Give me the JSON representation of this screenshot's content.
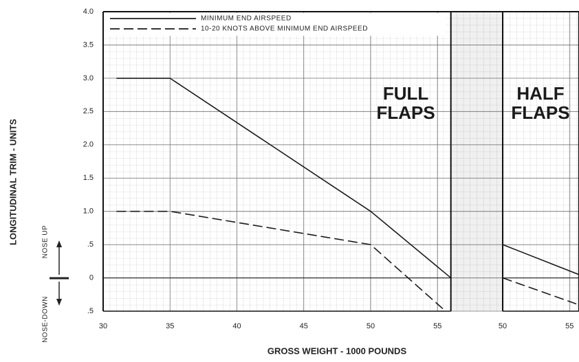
{
  "chart_data": [
    {
      "type": "line",
      "xlabel": "GROSS WEIGHT - 1000 POUNDS",
      "ylabel": "LONGITUDINAL TRIM - UNITS",
      "side_labels": {
        "up": "NOSE UP",
        "down": "NOSE-DOWN"
      },
      "annotation": [
        "FULL",
        "FLAPS"
      ],
      "xlim": [
        30,
        56
      ],
      "xticks": [
        30,
        35,
        40,
        45,
        50,
        55
      ],
      "ylim": [
        -0.5,
        4.0
      ],
      "yticks": [
        {
          "value": 4.0,
          "label": "4.0"
        },
        {
          "value": 3.5,
          "label": "3.5"
        },
        {
          "value": 3.0,
          "label": "3.0"
        },
        {
          "value": 2.5,
          "label": "2.5"
        },
        {
          "value": 2.0,
          "label": "2.0"
        },
        {
          "value": 1.5,
          "label": "1.5"
        },
        {
          "value": 1.0,
          "label": "1.0"
        },
        {
          "value": 0.5,
          "label": ".5"
        },
        0,
        {
          "value": -0.5,
          "label": ".5"
        }
      ],
      "series": [
        {
          "name": "MINIMUM END AIRSPEED",
          "color": "#1a1a1a",
          "style": "solid",
          "x": [
            31,
            35,
            50,
            56
          ],
          "values": [
            3.0,
            3.0,
            1.0,
            0
          ]
        },
        {
          "name": "10-20 KNOTS ABOVE MINIMUM END AIRSPEED",
          "color": "#1a1a1a",
          "style": "dashed",
          "x": [
            31,
            35,
            50,
            55.6
          ],
          "values": [
            1.0,
            1.0,
            0.5,
            -0.5
          ]
        }
      ]
    },
    {
      "type": "line",
      "annotation": [
        "HALF",
        "FLAPS"
      ],
      "xlim": [
        50,
        55.7
      ],
      "xticks": [
        50,
        55
      ],
      "ylim": [
        -0.5,
        4.0
      ],
      "series": [
        {
          "color": "#1a1a1a",
          "style": "solid",
          "x": [
            50,
            55.7
          ],
          "values": [
            0.5,
            0.05
          ]
        },
        {
          "color": "#1a1a1a",
          "style": "dashed",
          "x": [
            50,
            55.5
          ],
          "values": [
            0,
            -0.39
          ]
        }
      ]
    }
  ]
}
